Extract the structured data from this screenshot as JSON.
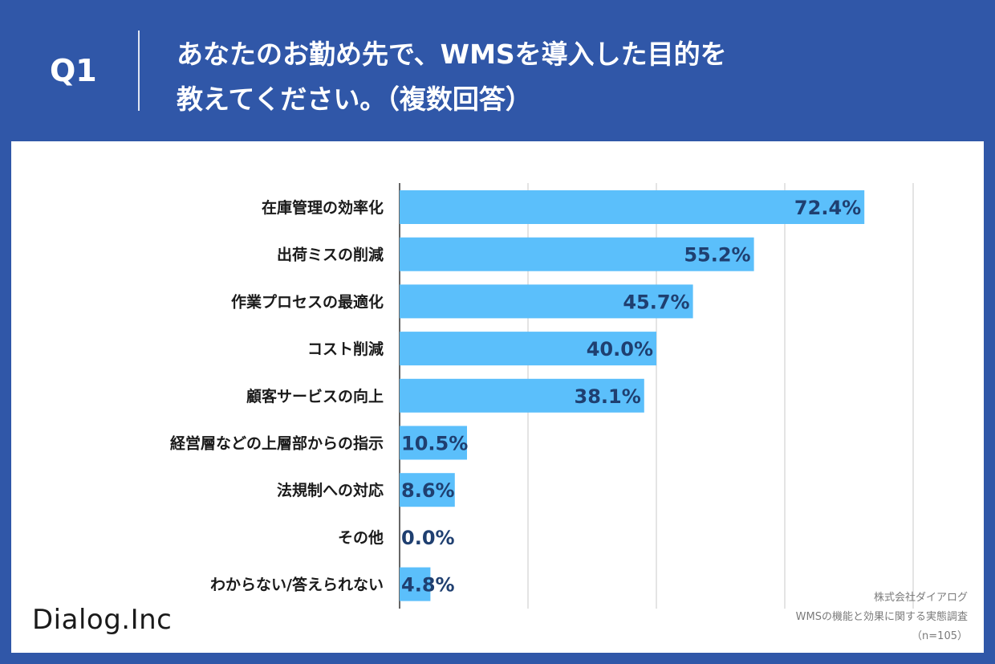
{
  "header": {
    "question_label": "Q1",
    "title_line1": "あなたのお勤め先で、WMSを導入した目的を",
    "title_line2": "教えてください。（複数回答）"
  },
  "colors": {
    "header_bg": "#3057a8",
    "panel_bg": "#ffffff",
    "bar": "#5bbffb",
    "value_text": "#1f3f70",
    "grid": "#c8c8c8"
  },
  "chart_data": {
    "type": "bar",
    "orientation": "horizontal",
    "categories": [
      "在庫管理の効率化",
      "出荷ミスの削減",
      "作業プロセスの最適化",
      "コスト削減",
      "顧客サービスの向上",
      "経営層などの上層部からの指示",
      "法規制への対応",
      "その他",
      "わからない/答えられない"
    ],
    "values": [
      72.4,
      55.2,
      45.7,
      40.0,
      38.1,
      10.5,
      8.6,
      0.0,
      4.8
    ],
    "value_labels": [
      "72.4%",
      "55.2%",
      "45.7%",
      "40.0%",
      "38.1%",
      "10.5%",
      "8.6%",
      "0.0%",
      "4.8%"
    ],
    "xlim": [
      0,
      80
    ],
    "grid": true
  },
  "logo": {
    "text": "Dialog.Inc"
  },
  "source": {
    "company": "株式会社ダイアログ",
    "survey": "WMSの機能と効果に関する実態調査",
    "sample": "（n=105）"
  }
}
